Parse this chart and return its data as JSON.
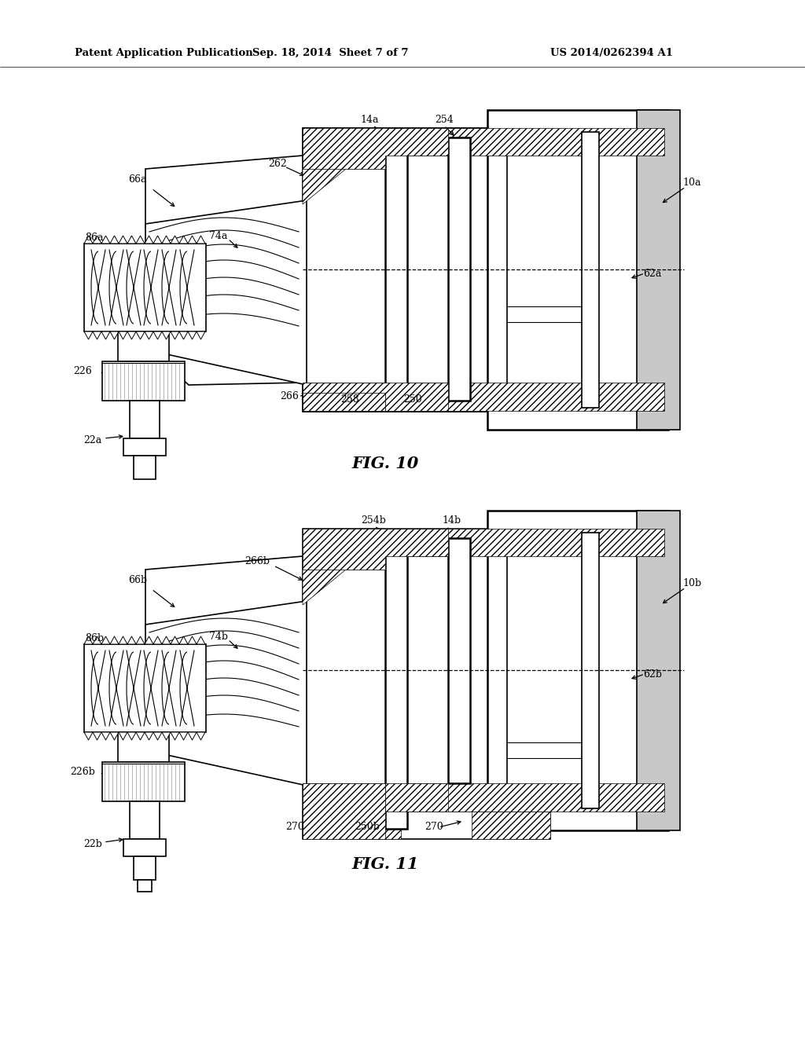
{
  "header_left": "Patent Application Publication",
  "header_center": "Sep. 18, 2014  Sheet 7 of 7",
  "header_right": "US 2014/0262394 A1",
  "fig10_caption": "FIG. 10",
  "fig11_caption": "FIG. 11",
  "bg": "#ffffff"
}
